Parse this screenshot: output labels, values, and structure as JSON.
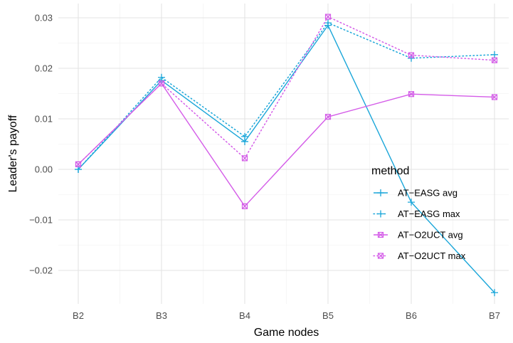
{
  "chart_data": {
    "type": "line",
    "xlabel": "Game nodes",
    "ylabel": "Leader's payoff",
    "categories": [
      "B2",
      "B3",
      "B4",
      "B5",
      "B6",
      "B7"
    ],
    "yticks": [
      -0.02,
      -0.01,
      0.0,
      0.01,
      0.02,
      0.03
    ],
    "ytick_labels": [
      "−0.02",
      "−0.01",
      "0.00",
      "0.01",
      "0.02",
      "0.03"
    ],
    "ylim": [
      -0.026,
      0.0315
    ],
    "grid": true,
    "legend": {
      "title": "method",
      "placement": "right, inside plot"
    },
    "series": [
      {
        "name": "AT−EASG avg",
        "values": [
          0.0,
          0.0176,
          0.0055,
          0.0285,
          -0.0065,
          -0.0244
        ],
        "color": "#1aa6d9",
        "linestyle": "solid",
        "marker": "plus"
      },
      {
        "name": "AT−EASG max",
        "values": [
          0.0,
          0.0182,
          0.0065,
          0.029,
          0.022,
          0.0227
        ],
        "color": "#1aa6d9",
        "linestyle": "dotted",
        "marker": "plus"
      },
      {
        "name": "AT−O2UCT avg",
        "values": [
          0.001,
          0.017,
          -0.0073,
          0.0104,
          0.0149,
          0.0143
        ],
        "color": "#d45ce8",
        "linestyle": "solid",
        "marker": "boxed-x"
      },
      {
        "name": "AT−O2UCT max",
        "values": [
          0.001,
          0.017,
          0.0022,
          0.0302,
          0.0226,
          0.0216
        ],
        "color": "#d45ce8",
        "linestyle": "dotted",
        "marker": "boxed-x"
      }
    ]
  }
}
